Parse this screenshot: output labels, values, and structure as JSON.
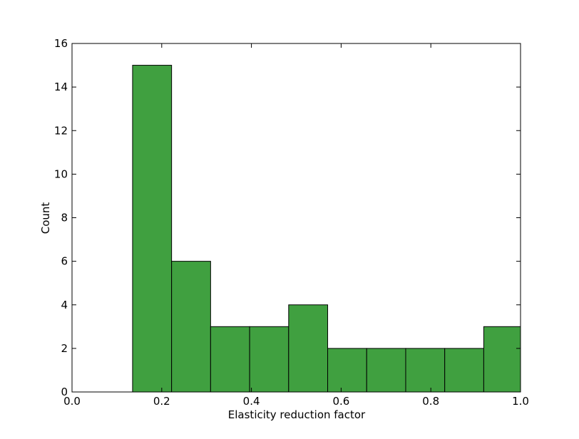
{
  "chart_data": {
    "type": "bar",
    "bin_edges": [
      0.135,
      0.222,
      0.309,
      0.396,
      0.483,
      0.57,
      0.657,
      0.744,
      0.831,
      0.918,
      1.0
    ],
    "values": [
      15,
      6,
      3,
      3,
      4,
      2,
      2,
      2,
      2,
      3
    ],
    "title": "",
    "xlabel": "Elasticity reduction factor",
    "ylabel": "Count",
    "xlim": [
      0.0,
      1.0
    ],
    "ylim": [
      0,
      16
    ],
    "xticks": [
      "0.0",
      "0.2",
      "0.4",
      "0.6",
      "0.8",
      "1.0"
    ],
    "yticks": [
      "0",
      "2",
      "4",
      "6",
      "8",
      "10",
      "12",
      "14",
      "16"
    ],
    "bar_color": "#40a040",
    "grid": false,
    "legend": "none"
  }
}
